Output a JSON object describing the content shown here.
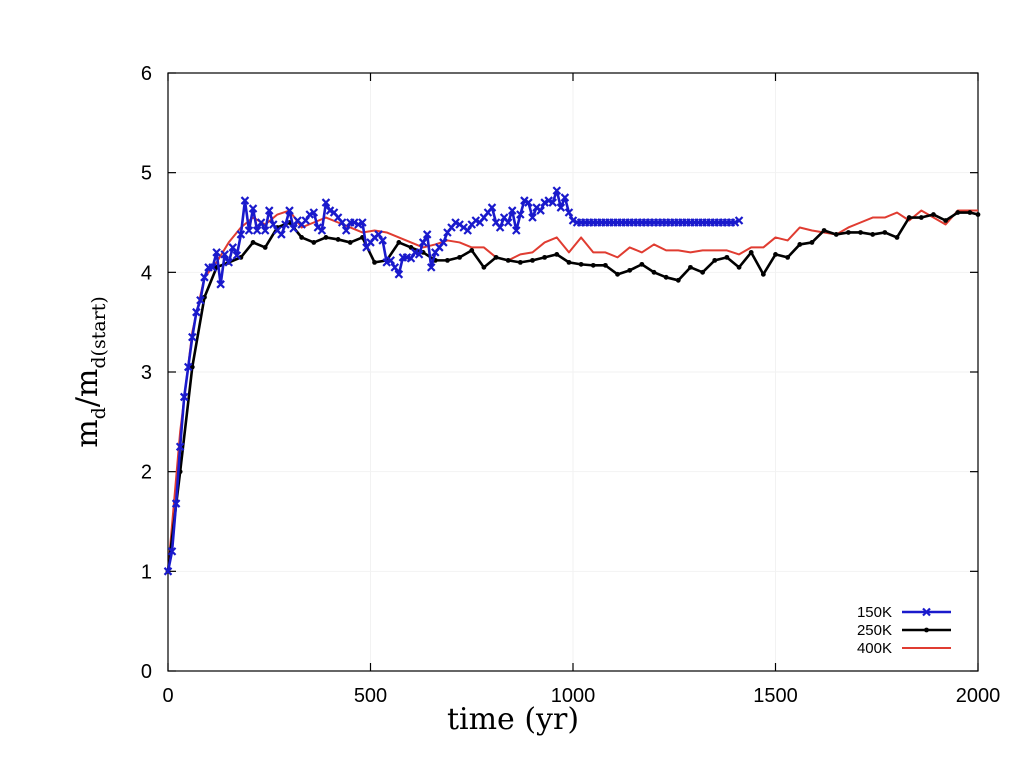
{
  "chart_data": {
    "type": "line",
    "title": "",
    "xlabel": "time (yr)",
    "ylabel": {
      "base": "m",
      "sub1": "d",
      "slash": "/",
      "sub2": "d(start)"
    },
    "xlim": [
      0,
      2000
    ],
    "ylim": [
      0,
      6
    ],
    "xticks": [
      0,
      500,
      1000,
      1500,
      2000
    ],
    "yticks": [
      0,
      1,
      2,
      3,
      4,
      5,
      6
    ],
    "grid": true,
    "legend_position": "bottom-right",
    "series": [
      {
        "name": "150K",
        "color": "#1a1acc",
        "marker": "x",
        "x": [
          0,
          10,
          20,
          30,
          40,
          50,
          60,
          70,
          80,
          90,
          100,
          110,
          120,
          130,
          140,
          150,
          160,
          170,
          180,
          190,
          200,
          210,
          220,
          230,
          240,
          250,
          260,
          270,
          280,
          290,
          300,
          310,
          320,
          330,
          340,
          350,
          360,
          370,
          380,
          390,
          400,
          410,
          420,
          430,
          440,
          450,
          460,
          470,
          480,
          490,
          500,
          510,
          520,
          530,
          540,
          550,
          560,
          570,
          580,
          590,
          600,
          610,
          620,
          630,
          640,
          650,
          660,
          670,
          680,
          690,
          700,
          710,
          720,
          730,
          740,
          750,
          760,
          770,
          780,
          790,
          800,
          810,
          820,
          830,
          840,
          850,
          860,
          870,
          880,
          890,
          900,
          910,
          920,
          930,
          940,
          950,
          960,
          970,
          980,
          990,
          1000,
          1010,
          1020,
          1030,
          1040,
          1050,
          1060,
          1070,
          1080,
          1090,
          1100,
          1110,
          1120,
          1130,
          1140,
          1150,
          1160,
          1170,
          1180,
          1190,
          1200,
          1210,
          1220,
          1230,
          1240,
          1250,
          1260,
          1270,
          1280,
          1290,
          1300,
          1310,
          1320,
          1330,
          1340,
          1350,
          1360,
          1370,
          1380,
          1390,
          1400,
          1410
        ],
        "y": [
          1.0,
          1.2,
          1.68,
          2.25,
          2.75,
          3.05,
          3.35,
          3.6,
          3.72,
          3.95,
          4.05,
          4.05,
          4.2,
          3.88,
          4.18,
          4.1,
          4.25,
          4.17,
          4.38,
          4.72,
          4.42,
          4.64,
          4.42,
          4.5,
          4.42,
          4.62,
          4.48,
          4.42,
          4.38,
          4.48,
          4.62,
          4.44,
          4.52,
          4.48,
          4.52,
          4.58,
          4.6,
          4.45,
          4.42,
          4.7,
          4.62,
          4.6,
          4.55,
          4.5,
          4.42,
          4.5,
          4.5,
          4.48,
          4.5,
          4.25,
          4.3,
          4.35,
          4.38,
          4.32,
          4.1,
          4.12,
          4.05,
          3.98,
          4.15,
          4.15,
          4.14,
          4.2,
          4.18,
          4.3,
          4.38,
          4.05,
          4.2,
          4.25,
          4.3,
          4.4,
          4.45,
          4.5,
          4.48,
          4.45,
          4.42,
          4.48,
          4.52,
          4.5,
          4.55,
          4.6,
          4.65,
          4.5,
          4.45,
          4.55,
          4.5,
          4.62,
          4.42,
          4.58,
          4.72,
          4.7,
          4.55,
          4.65,
          4.62,
          4.7,
          4.72,
          4.7,
          4.82,
          4.65,
          4.75,
          4.6,
          4.52,
          4.5,
          4.5,
          4.5,
          4.5,
          4.5,
          4.5,
          4.5,
          4.5,
          4.5,
          4.5,
          4.5,
          4.5,
          4.5,
          4.5,
          4.5,
          4.5,
          4.5,
          4.5,
          4.5,
          4.5,
          4.5,
          4.5,
          4.5,
          4.5,
          4.5,
          4.5,
          4.5,
          4.5,
          4.5,
          4.5,
          4.5,
          4.5,
          4.5,
          4.5,
          4.5,
          4.5,
          4.5,
          4.5,
          4.5,
          4.5,
          4.52
        ]
      },
      {
        "name": "250K",
        "color": "#000000",
        "marker": "dot",
        "x": [
          0,
          30,
          60,
          90,
          120,
          150,
          180,
          210,
          240,
          270,
          300,
          330,
          360,
          390,
          420,
          450,
          480,
          510,
          540,
          570,
          600,
          630,
          660,
          690,
          720,
          750,
          780,
          810,
          840,
          870,
          900,
          930,
          960,
          990,
          1020,
          1050,
          1080,
          1110,
          1140,
          1170,
          1200,
          1230,
          1260,
          1290,
          1320,
          1350,
          1380,
          1410,
          1440,
          1470,
          1500,
          1530,
          1560,
          1590,
          1620,
          1650,
          1680,
          1710,
          1740,
          1770,
          1800,
          1830,
          1860,
          1890,
          1920,
          1950,
          1980,
          2000
        ],
        "y": [
          1.0,
          2.0,
          3.05,
          3.75,
          4.05,
          4.1,
          4.15,
          4.3,
          4.25,
          4.45,
          4.5,
          4.35,
          4.3,
          4.35,
          4.33,
          4.3,
          4.35,
          4.1,
          4.12,
          4.3,
          4.25,
          4.2,
          4.12,
          4.12,
          4.15,
          4.22,
          4.05,
          4.15,
          4.12,
          4.1,
          4.12,
          4.15,
          4.18,
          4.1,
          4.08,
          4.07,
          4.07,
          3.98,
          4.02,
          4.08,
          4.0,
          3.95,
          3.92,
          4.05,
          4.0,
          4.12,
          4.15,
          4.05,
          4.2,
          3.98,
          4.18,
          4.15,
          4.28,
          4.3,
          4.42,
          4.38,
          4.4,
          4.4,
          4.38,
          4.4,
          4.35,
          4.55,
          4.55,
          4.58,
          4.52,
          4.6,
          4.6,
          4.58
        ]
      },
      {
        "name": "400K",
        "color": "#e03c31",
        "marker": "none",
        "x": [
          0,
          30,
          60,
          90,
          120,
          150,
          180,
          210,
          240,
          270,
          300,
          330,
          360,
          390,
          420,
          450,
          480,
          510,
          540,
          570,
          600,
          630,
          660,
          690,
          720,
          750,
          780,
          810,
          840,
          870,
          900,
          930,
          960,
          990,
          1020,
          1050,
          1080,
          1110,
          1140,
          1170,
          1200,
          1230,
          1260,
          1290,
          1320,
          1350,
          1380,
          1410,
          1440,
          1470,
          1500,
          1530,
          1560,
          1590,
          1620,
          1650,
          1680,
          1710,
          1740,
          1770,
          1800,
          1830,
          1860,
          1890,
          1920,
          1950,
          1980,
          2000
        ],
        "y": [
          1.0,
          2.4,
          3.4,
          3.95,
          4.1,
          4.3,
          4.45,
          4.55,
          4.48,
          4.58,
          4.62,
          4.45,
          4.5,
          4.55,
          4.5,
          4.45,
          4.4,
          4.42,
          4.4,
          4.35,
          4.3,
          4.25,
          4.28,
          4.32,
          4.3,
          4.25,
          4.25,
          4.15,
          4.12,
          4.18,
          4.2,
          4.3,
          4.35,
          4.2,
          4.35,
          4.2,
          4.2,
          4.15,
          4.25,
          4.2,
          4.28,
          4.22,
          4.22,
          4.2,
          4.22,
          4.22,
          4.22,
          4.18,
          4.25,
          4.25,
          4.35,
          4.32,
          4.45,
          4.42,
          4.4,
          4.38,
          4.45,
          4.5,
          4.55,
          4.55,
          4.6,
          4.52,
          4.62,
          4.55,
          4.48,
          4.62,
          4.62,
          4.62
        ]
      }
    ]
  }
}
